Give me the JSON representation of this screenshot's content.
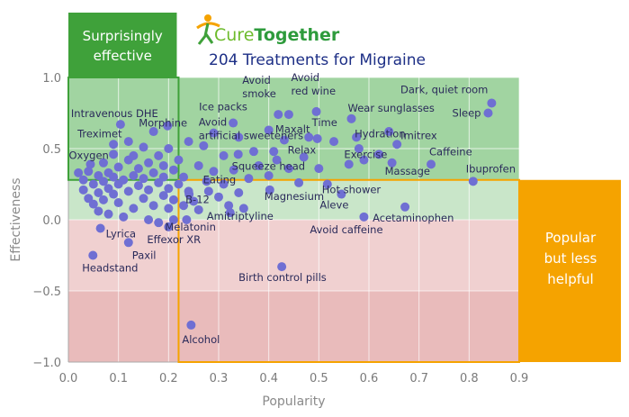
{
  "logo": {
    "part1": "Cure",
    "part2": "Together"
  },
  "colors": {
    "green_zone": "#7fc47f",
    "red_zone": "#e3a9aa",
    "green_box": "#3fa13a",
    "orange_box": "#f5a300",
    "point": "#6f6fd3",
    "title": "#1d2f86"
  },
  "chart_data": {
    "type": "scatter",
    "title": "204 Treatments for Migraine",
    "xlabel": "Popularity",
    "ylabel": "Effectiveness",
    "xlim": [
      0.0,
      0.9
    ],
    "ylim": [
      -1.0,
      1.0
    ],
    "x_ticks": [
      "0.0",
      "0.1",
      "0.2",
      "0.3",
      "0.4",
      "0.5",
      "0.6",
      "0.7",
      "0.8",
      "0.9"
    ],
    "y_ticks": [
      "1.0",
      "0.5",
      "0.0",
      "−0.5",
      "−1.0"
    ],
    "grid": true,
    "zones": {
      "green": "effectiveness 0 to 1",
      "red": "effectiveness -1 to 0",
      "mean_effectiveness": 0.28,
      "mean_popularity": 0.22
    },
    "annotations": {
      "top_left": [
        "Surprisingly",
        "effective"
      ],
      "right": [
        "Popular",
        "but less",
        "helpful"
      ]
    },
    "labeled_points": [
      {
        "label": "Dark, quiet room",
        "x": 0.845,
        "y": 0.82
      },
      {
        "label": "Sleep",
        "x": 0.838,
        "y": 0.75
      },
      {
        "label": "Ibuprofen",
        "x": 0.808,
        "y": 0.27
      },
      {
        "label": "Caffeine",
        "x": 0.724,
        "y": 0.39
      },
      {
        "label": "Imitrex",
        "x": 0.656,
        "y": 0.53
      },
      {
        "label": "Massage",
        "x": 0.646,
        "y": 0.4
      },
      {
        "label": "Wear sunglasses",
        "x": 0.565,
        "y": 0.71
      },
      {
        "label": "Acetaminophen",
        "x": 0.672,
        "y": 0.09
      },
      {
        "label": "Hydration",
        "x": 0.575,
        "y": 0.58
      },
      {
        "label": "Exercise",
        "x": 0.59,
        "y": 0.42
      },
      {
        "label": "Avoid red wine",
        "x": 0.495,
        "y": 0.76
      },
      {
        "label": "Time",
        "x": 0.497,
        "y": 0.57
      },
      {
        "label": "Relax",
        "x": 0.47,
        "y": 0.44
      },
      {
        "label": "Hot shower",
        "x": 0.517,
        "y": 0.25
      },
      {
        "label": "Aleve",
        "x": 0.545,
        "y": 0.18
      },
      {
        "label": "Avoid caffeine",
        "x": 0.59,
        "y": 0.02
      },
      {
        "label": "Avoid smoke",
        "x": 0.419,
        "y": 0.74
      },
      {
        "label": "Maxalt",
        "x": 0.431,
        "y": 0.56
      },
      {
        "label": "Squeeze head",
        "x": 0.416,
        "y": 0.42
      },
      {
        "label": "Magnesium",
        "x": 0.402,
        "y": 0.21
      },
      {
        "label": "Avoid artificial sweeteners",
        "x": 0.339,
        "y": 0.46
      },
      {
        "label": "Ice packs",
        "x": 0.329,
        "y": 0.68
      },
      {
        "label": "Eating",
        "x": 0.276,
        "y": 0.27
      },
      {
        "label": "B-12",
        "x": 0.241,
        "y": 0.18
      },
      {
        "label": "Amitriptyline",
        "x": 0.323,
        "y": 0.05
      },
      {
        "label": "Melatonin",
        "x": 0.236,
        "y": 0.0
      },
      {
        "label": "Effexor XR",
        "x": 0.2,
        "y": -0.05
      },
      {
        "label": "Birth control pills",
        "x": 0.426,
        "y": -0.33
      },
      {
        "label": "Alcohol",
        "x": 0.245,
        "y": -0.74
      },
      {
        "label": "Intravenous DHE",
        "x": 0.104,
        "y": 0.67
      },
      {
        "label": "Morphine",
        "x": 0.198,
        "y": 0.66
      },
      {
        "label": "Treximet",
        "x": 0.09,
        "y": 0.53
      },
      {
        "label": "Oxygen",
        "x": 0.044,
        "y": 0.39
      },
      {
        "label": "Lyrica",
        "x": 0.064,
        "y": -0.06
      },
      {
        "label": "Paxil",
        "x": 0.12,
        "y": -0.16
      },
      {
        "label": "Headstand",
        "x": 0.049,
        "y": -0.25
      }
    ],
    "other_points": [
      [
        0.02,
        0.33
      ],
      [
        0.03,
        0.28
      ],
      [
        0.03,
        0.21
      ],
      [
        0.04,
        0.15
      ],
      [
        0.04,
        0.34
      ],
      [
        0.05,
        0.25
      ],
      [
        0.05,
        0.11
      ],
      [
        0.06,
        0.31
      ],
      [
        0.06,
        0.19
      ],
      [
        0.06,
        0.06
      ],
      [
        0.07,
        0.4
      ],
      [
        0.07,
        0.27
      ],
      [
        0.07,
        0.14
      ],
      [
        0.08,
        0.33
      ],
      [
        0.08,
        0.22
      ],
      [
        0.08,
        0.04
      ],
      [
        0.09,
        0.3
      ],
      [
        0.09,
        0.18
      ],
      [
        0.09,
        0.46
      ],
      [
        0.1,
        0.25
      ],
      [
        0.1,
        0.37
      ],
      [
        0.1,
        0.12
      ],
      [
        0.11,
        0.02
      ],
      [
        0.11,
        0.28
      ],
      [
        0.12,
        0.42
      ],
      [
        0.12,
        0.2
      ],
      [
        0.12,
        0.55
      ],
      [
        0.13,
        0.31
      ],
      [
        0.13,
        0.08
      ],
      [
        0.13,
        0.45
      ],
      [
        0.14,
        0.24
      ],
      [
        0.14,
        0.36
      ],
      [
        0.15,
        0.15
      ],
      [
        0.15,
        0.51
      ],
      [
        0.15,
        0.29
      ],
      [
        0.16,
        0.4
      ],
      [
        0.16,
        0.0
      ],
      [
        0.16,
        0.21
      ],
      [
        0.17,
        0.33
      ],
      [
        0.17,
        0.62
      ],
      [
        0.17,
        0.1
      ],
      [
        0.18,
        0.45
      ],
      [
        0.18,
        0.26
      ],
      [
        0.18,
        -0.02
      ],
      [
        0.19,
        0.38
      ],
      [
        0.19,
        0.17
      ],
      [
        0.19,
        0.3
      ],
      [
        0.2,
        0.5
      ],
      [
        0.2,
        0.22
      ],
      [
        0.2,
        0.08
      ],
      [
        0.21,
        0.35
      ],
      [
        0.21,
        0.14
      ],
      [
        0.21,
        0.0
      ],
      [
        0.22,
        0.25
      ],
      [
        0.22,
        0.42
      ],
      [
        0.23,
        0.3
      ],
      [
        0.23,
        0.1
      ],
      [
        0.24,
        0.2
      ],
      [
        0.24,
        0.55
      ],
      [
        0.25,
        0.13
      ],
      [
        0.26,
        0.38
      ],
      [
        0.26,
        0.07
      ],
      [
        0.27,
        0.52
      ],
      [
        0.28,
        0.2
      ],
      [
        0.29,
        0.34
      ],
      [
        0.29,
        0.61
      ],
      [
        0.3,
        0.16
      ],
      [
        0.31,
        0.45
      ],
      [
        0.31,
        0.25
      ],
      [
        0.32,
        0.1
      ],
      [
        0.33,
        0.35
      ],
      [
        0.34,
        0.58
      ],
      [
        0.34,
        0.19
      ],
      [
        0.35,
        0.08
      ],
      [
        0.36,
        0.29
      ],
      [
        0.37,
        0.48
      ],
      [
        0.38,
        0.38
      ],
      [
        0.4,
        0.63
      ],
      [
        0.4,
        0.31
      ],
      [
        0.41,
        0.48
      ],
      [
        0.44,
        0.36
      ],
      [
        0.44,
        0.74
      ],
      [
        0.46,
        0.26
      ],
      [
        0.48,
        0.58
      ],
      [
        0.5,
        0.36
      ],
      [
        0.53,
        0.55
      ],
      [
        0.56,
        0.39
      ],
      [
        0.58,
        0.5
      ],
      [
        0.62,
        0.46
      ],
      [
        0.64,
        0.62
      ]
    ]
  }
}
